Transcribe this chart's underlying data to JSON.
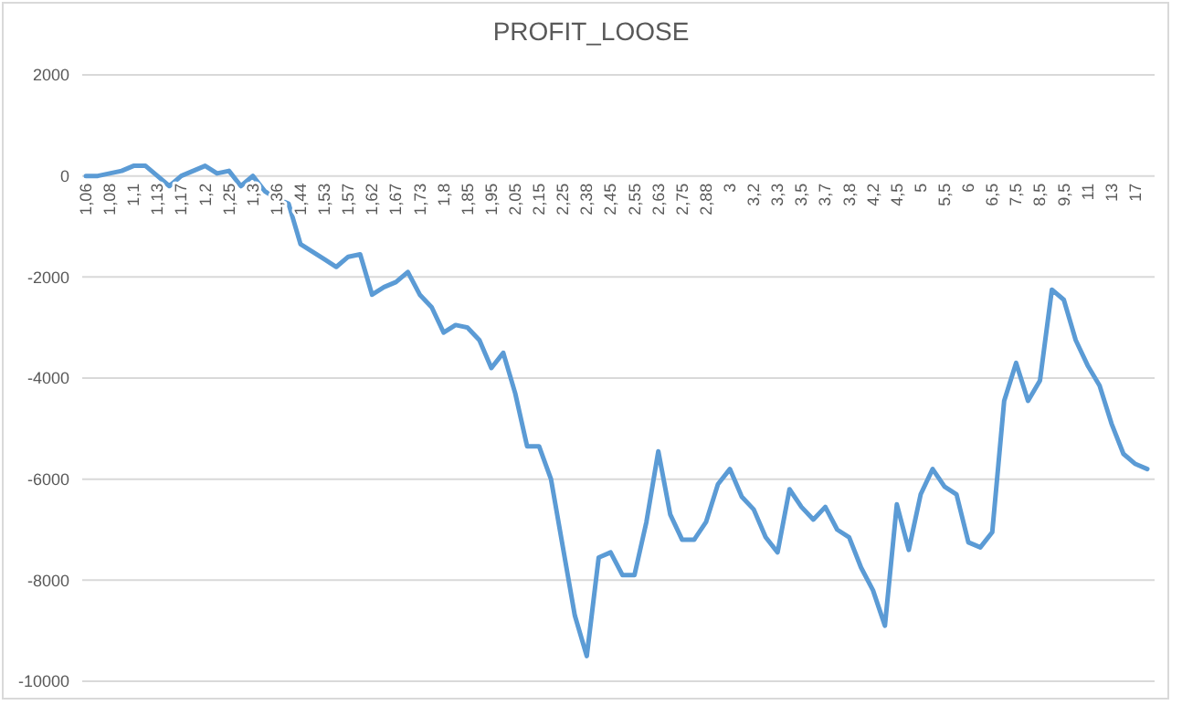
{
  "chart_data": {
    "type": "line",
    "title": "PROFIT_LOOSE",
    "categories": [
      "1,06",
      null,
      "1,08",
      null,
      "1,1",
      null,
      "1,13",
      null,
      "1,17",
      null,
      "1,2",
      null,
      "1,25",
      null,
      "1,3",
      null,
      "1,36",
      null,
      "1,44",
      null,
      "1,53",
      null,
      "1,57",
      null,
      "1,62",
      null,
      "1,67",
      null,
      "1,73",
      null,
      "1,8",
      null,
      "1,85",
      null,
      "1,95",
      null,
      "2,05",
      null,
      "2,15",
      null,
      "2,25",
      null,
      "2,38",
      null,
      "2,45",
      null,
      "2,55",
      null,
      "2,63",
      null,
      "2,75",
      null,
      "2,88",
      null,
      "3",
      null,
      "3,2",
      null,
      "3,3",
      null,
      "3,5",
      null,
      "3,7",
      null,
      "3,8",
      null,
      "4,2",
      null,
      "4,5",
      null,
      "5",
      null,
      "5,5",
      null,
      "6",
      null,
      "6,5",
      null,
      "7,5",
      null,
      "8,5",
      null,
      "9,5",
      null,
      "11",
      null,
      "13",
      null,
      "17",
      null
    ],
    "series": [
      {
        "color": "#5b9bd5",
        "values": [
          0,
          0,
          50,
          100,
          200,
          200,
          0,
          -200,
          0,
          100,
          200,
          50,
          100,
          -200,
          0,
          -300,
          -450,
          -550,
          -1350,
          -1500,
          -1650,
          -1800,
          -1600,
          -1550,
          -2350,
          -2200,
          -2100,
          -1900,
          -2350,
          -2600,
          -3100,
          -2950,
          -3000,
          -3250,
          -3800,
          -3500,
          -4300,
          -5350,
          -5350,
          -6000,
          -7350,
          -8700,
          -9500,
          -7550,
          -7450,
          -7900,
          -7900,
          -6850,
          -5450,
          -6700,
          -7200,
          -7200,
          -6850,
          -6100,
          -5800,
          -6350,
          -6600,
          -7150,
          -7450,
          -6200,
          -6550,
          -6800,
          -6550,
          -7000,
          -7150,
          -7750,
          -8200,
          -8900,
          -6500,
          -7400,
          -6300,
          -5800,
          -6150,
          -6300,
          -7250,
          -7350,
          -7050,
          -4450,
          -3700,
          -4450,
          -4050,
          -2250,
          -2450,
          -3250,
          -3750,
          -4150,
          -4900,
          -5500,
          -5700,
          -5800
        ]
      }
    ],
    "ylim": [
      -10000,
      2000
    ],
    "yticks": [
      -10000,
      -8000,
      -6000,
      -4000,
      -2000,
      0,
      2000
    ],
    "grid": "y",
    "marker": "none",
    "line_style": "solid"
  }
}
